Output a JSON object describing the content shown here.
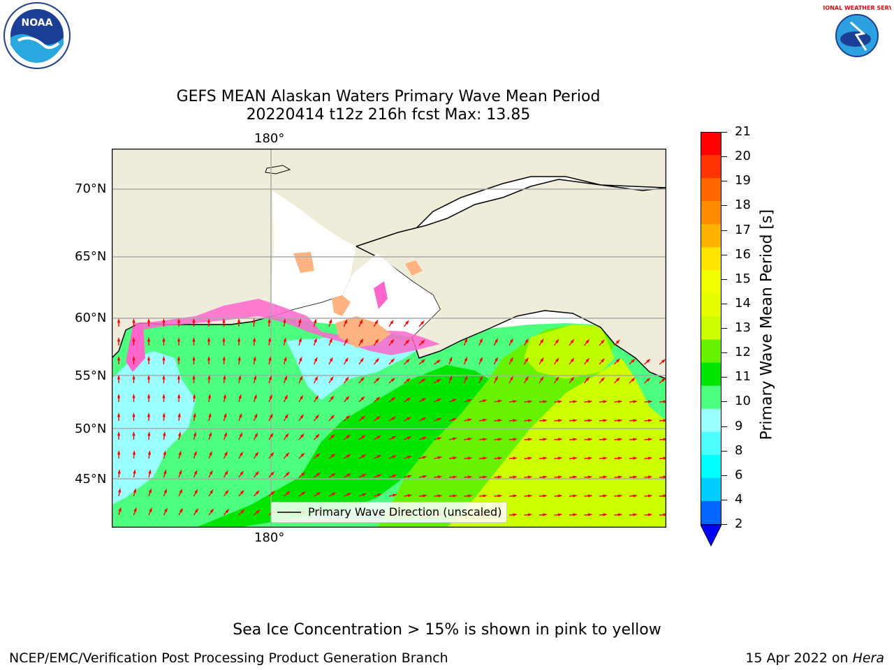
{
  "header": {
    "title_line1": "GEFS MEAN Alaskan Waters Primary Wave Mean Period",
    "title_line2": "20220414 t12z 216h fcst   Max: 13.85"
  },
  "logos": {
    "left": {
      "name": "noaa-logo",
      "text": "NOAA"
    },
    "right": {
      "name": "nws-logo",
      "text": "NATIONAL WEATHER SERVICE"
    }
  },
  "map": {
    "lon_label_top": "180°",
    "lon_label_bottom": "180°",
    "lat_labels": [
      "70°N",
      "65°N",
      "60°N",
      "55°N",
      "50°N",
      "45°N"
    ],
    "legend_label": "Primary Wave Direction (unscaled)",
    "arrow_color": "#ff0000",
    "land_color": "#efedda",
    "ocean_colors": {
      "period_8_9": "#99ffff",
      "period_9_10": "#4dff7f",
      "period_10_11": "#00e600",
      "period_11_12": "#66f200",
      "period_12_13": "#ccff00"
    }
  },
  "colorbar": {
    "label": "Primary Wave Mean Period [s]",
    "ticks": [
      "21",
      "20",
      "19",
      "18",
      "17",
      "16",
      "15",
      "14",
      "13",
      "12",
      "11",
      "10",
      "9",
      "8",
      "6",
      "4",
      "2"
    ],
    "colors": [
      "#ff0000",
      "#ff3300",
      "#ff6600",
      "#ff8c00",
      "#ffb300",
      "#ffe600",
      "#f2ff00",
      "#e6ff00",
      "#ccff00",
      "#66f200",
      "#00e600",
      "#4dff7f",
      "#99ffff",
      "#4dffff",
      "#00ffff",
      "#00ccff",
      "#0066ff"
    ],
    "extend_color": "#0000ff"
  },
  "footer": {
    "note": "Sea Ice Concentration > 15% is shown in pink to yellow",
    "credit": "NCEP/EMC/Verification Post Processing Product Generation Branch",
    "date": "15 Apr 2022 on",
    "host": "Hera"
  }
}
